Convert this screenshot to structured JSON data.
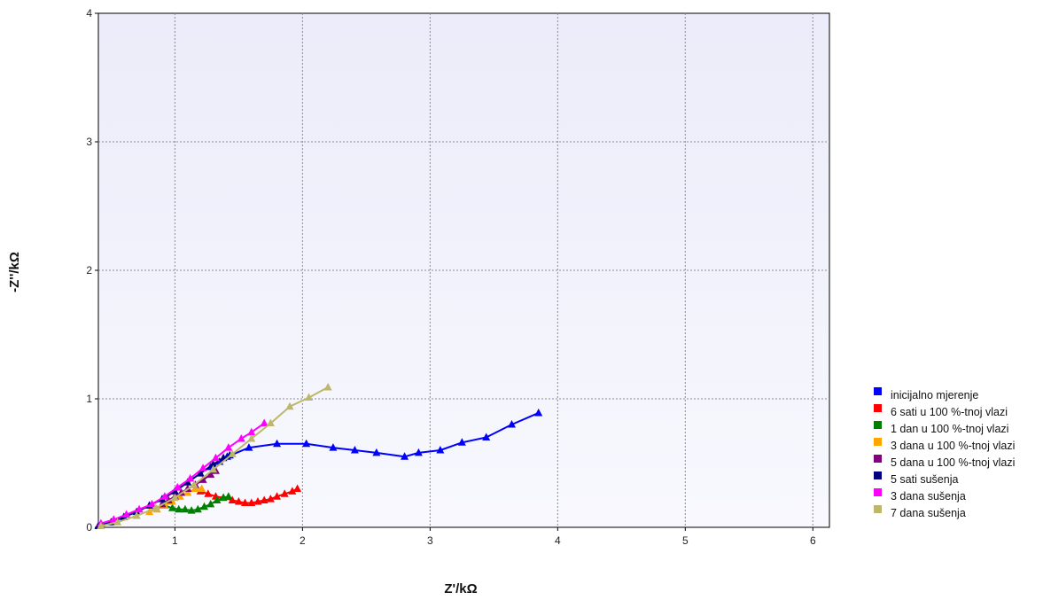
{
  "chart_data": {
    "type": "line",
    "xlabel": "Z'/kΩ",
    "ylabel": "-Z''/kΩ",
    "xlim": [
      0.4,
      6.13
    ],
    "ylim": [
      0,
      4
    ],
    "x_ticks": [
      1,
      2,
      3,
      4,
      5,
      6
    ],
    "y_ticks": [
      0,
      1,
      2,
      3,
      4
    ],
    "grid": true,
    "legend_position": "bottom-right",
    "series": [
      {
        "name": "inicijalno mjerenje",
        "color": "#0000ff",
        "x": [
          1.28,
          1.35,
          1.41,
          1.58,
          1.8,
          2.03,
          2.24,
          2.41,
          2.58,
          2.8,
          2.91,
          3.08,
          3.25,
          3.44,
          3.64,
          3.85
        ],
        "y": [
          0.47,
          0.51,
          0.55,
          0.62,
          0.65,
          0.65,
          0.62,
          0.6,
          0.58,
          0.55,
          0.58,
          0.6,
          0.66,
          0.7,
          0.8,
          0.89
        ]
      },
      {
        "name": "6 sati u 100 %-tnoj vlazi",
        "color": "#ff0000",
        "x": [
          1.2,
          1.26,
          1.32,
          1.38,
          1.45,
          1.5,
          1.55,
          1.6,
          1.65,
          1.7,
          1.75,
          1.8,
          1.86,
          1.92,
          1.96
        ],
        "y": [
          0.28,
          0.26,
          0.24,
          0.23,
          0.21,
          0.2,
          0.19,
          0.19,
          0.2,
          0.21,
          0.22,
          0.24,
          0.26,
          0.28,
          0.3
        ]
      },
      {
        "name": "1 dan u 100 %-tnoj vlazi",
        "color": "#008000",
        "x": [
          0.92,
          0.98,
          1.03,
          1.08,
          1.13,
          1.18,
          1.23,
          1.28,
          1.33,
          1.38,
          1.42
        ],
        "y": [
          0.17,
          0.15,
          0.14,
          0.14,
          0.13,
          0.14,
          0.16,
          0.18,
          0.21,
          0.23,
          0.24
        ]
      },
      {
        "name": "3 dana u 100 %-tnoj vlazi",
        "color": "#ffa500",
        "x": [
          0.8,
          0.86,
          0.92,
          0.98,
          1.04,
          1.1,
          1.16,
          1.21
        ],
        "y": [
          0.12,
          0.14,
          0.17,
          0.2,
          0.24,
          0.27,
          0.3,
          0.3
        ]
      },
      {
        "name": "5 dana u 100 %-tnoj vlazi",
        "color": "#800080",
        "x": [
          0.9,
          0.95,
          1.0,
          1.05,
          1.1,
          1.16,
          1.22,
          1.28,
          1.32
        ],
        "y": [
          0.18,
          0.21,
          0.24,
          0.27,
          0.3,
          0.33,
          0.37,
          0.41,
          0.44
        ]
      },
      {
        "name": "5 sati sušenja",
        "color": "#000080",
        "x": [
          0.4,
          0.5,
          0.6,
          0.7,
          0.8,
          0.9,
          1.0,
          1.1,
          1.2,
          1.3,
          1.38,
          1.43
        ],
        "y": [
          0.01,
          0.04,
          0.08,
          0.12,
          0.17,
          0.22,
          0.28,
          0.35,
          0.42,
          0.49,
          0.54,
          0.56
        ]
      },
      {
        "name": "3 dana sušenja",
        "color": "#ff00ff",
        "x": [
          0.42,
          0.52,
          0.62,
          0.72,
          0.82,
          0.92,
          1.02,
          1.12,
          1.22,
          1.32,
          1.42,
          1.52,
          1.6,
          1.7
        ],
        "y": [
          0.03,
          0.06,
          0.1,
          0.14,
          0.18,
          0.24,
          0.31,
          0.38,
          0.46,
          0.54,
          0.62,
          0.69,
          0.74,
          0.81
        ]
      },
      {
        "name": "7 dana sušenja",
        "color": "#bdb76b",
        "x": [
          0.42,
          0.55,
          0.7,
          0.85,
          1.0,
          1.15,
          1.3,
          1.45,
          1.6,
          1.75,
          1.9,
          2.05,
          2.2
        ],
        "y": [
          0.01,
          0.04,
          0.09,
          0.15,
          0.23,
          0.33,
          0.45,
          0.57,
          0.69,
          0.81,
          0.94,
          1.01,
          1.09
        ]
      }
    ]
  }
}
